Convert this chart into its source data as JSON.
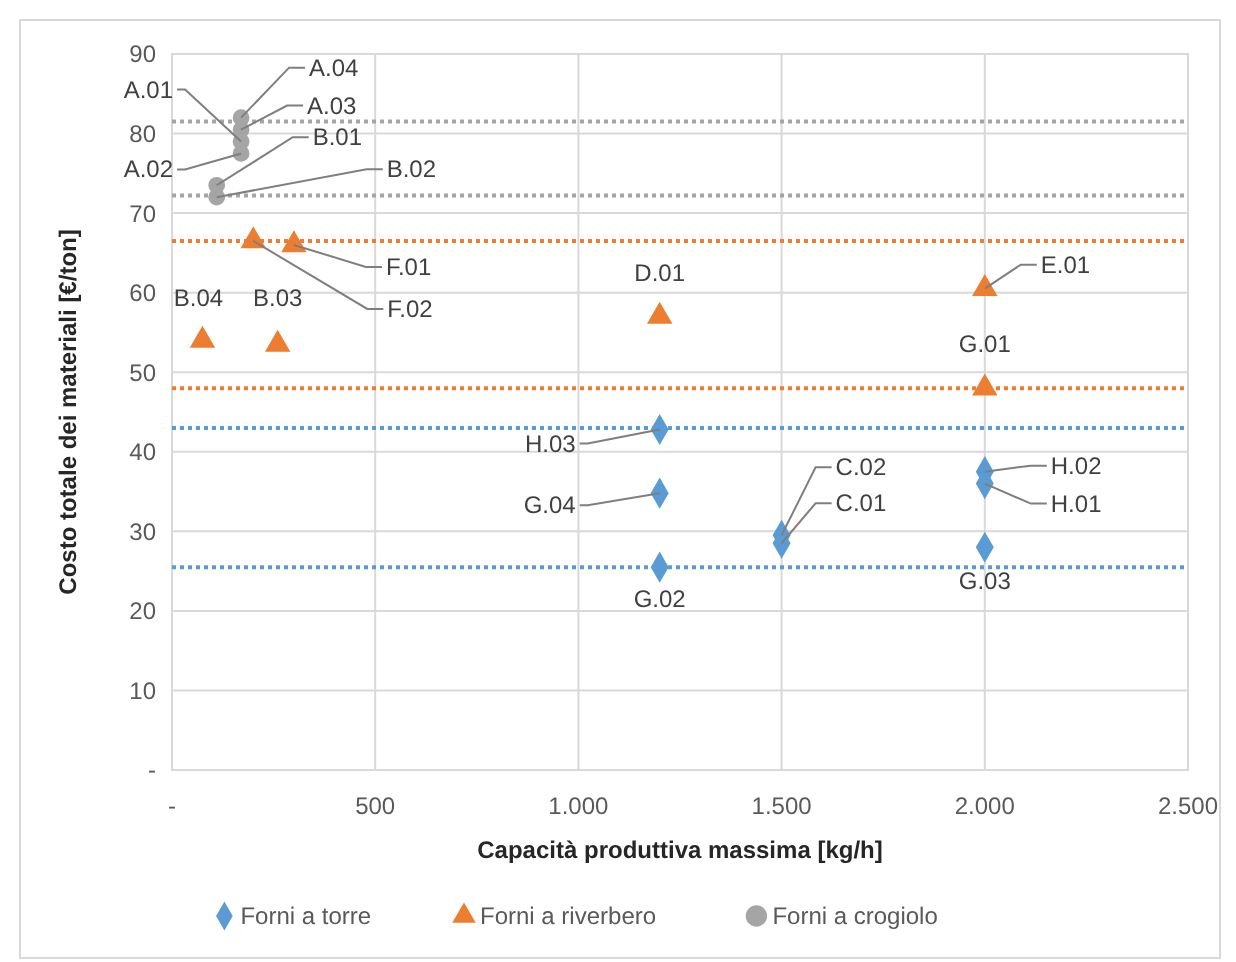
{
  "chart_data": {
    "type": "scatter",
    "xlabel": "Capacità produttiva massima [kg/h]",
    "ylabel": "Costo totale dei materiali [€/ton]",
    "xlim": [
      0,
      2500
    ],
    "xticks": [
      {
        "value": 0,
        "label": "-"
      },
      500,
      {
        "value": 1000,
        "label": "1.000"
      },
      {
        "value": 1500,
        "label": "1.500"
      },
      {
        "value": 2000,
        "label": "2.000"
      },
      {
        "value": 2500,
        "label": "2.500"
      }
    ],
    "ylim": [
      0,
      90
    ],
    "yticks": [
      {
        "value": 0,
        "label": "-"
      },
      10,
      20,
      30,
      40,
      50,
      60,
      70,
      80,
      90
    ],
    "grid": true,
    "legend": "bottom",
    "series": [
      {
        "name": "Forni a torre",
        "color": "#5b9bd5",
        "marker": "diamond",
        "x": [
          1200,
          1200,
          1200,
          1500,
          1500,
          2000,
          2000,
          2000
        ],
        "values": [
          42.8,
          34.8,
          25.5,
          29.5,
          28.5,
          37.5,
          36,
          28
        ]
      },
      {
        "name": "Forni a riverbero",
        "color": "#ed7d31",
        "marker": "triangle",
        "x": [
          300,
          200,
          75,
          260,
          1200,
          2000,
          2000
        ],
        "values": [
          66,
          66.5,
          54,
          53.5,
          57,
          60.5,
          48
        ]
      },
      {
        "name": "Forni a crogiolo",
        "color": "#a5a5a5",
        "marker": "circle",
        "x": [
          170,
          170,
          170,
          170,
          110,
          110
        ],
        "values": [
          82,
          80.5,
          79,
          77.5,
          73.5,
          72
        ]
      }
    ],
    "ref_lines": [
      {
        "axis": "y",
        "value": 81.5,
        "color": "#a5a5a5",
        "line_style": "dotted"
      },
      {
        "axis": "y",
        "value": 72.2,
        "color": "#a5a5a5",
        "line_style": "dotted"
      },
      {
        "axis": "y",
        "value": 66.5,
        "color": "#ed7d31",
        "line_style": "dotted"
      },
      {
        "axis": "y",
        "value": 48,
        "color": "#ed7d31",
        "line_style": "dotted"
      },
      {
        "axis": "y",
        "value": 43,
        "color": "#5b9bd5",
        "line_style": "dotted"
      },
      {
        "axis": "y",
        "value": 25.5,
        "color": "#5b9bd5",
        "line_style": "dotted"
      }
    ],
    "annotations": [
      {
        "text": "A.04",
        "x": 170,
        "y": 82
      },
      {
        "text": "A.03",
        "x": 170,
        "y": 80.5
      },
      {
        "text": "A.01",
        "x": 170,
        "y": 79
      },
      {
        "text": "A.02",
        "x": 170,
        "y": 77.5
      },
      {
        "text": "B.01",
        "x": 110,
        "y": 73.5
      },
      {
        "text": "B.02",
        "x": 110,
        "y": 72
      },
      {
        "text": "F.01",
        "x": 300,
        "y": 66
      },
      {
        "text": "F.02",
        "x": 200,
        "y": 66.5
      },
      {
        "text": "B.04",
        "x": 75,
        "y": 54
      },
      {
        "text": "B.03",
        "x": 260,
        "y": 53.5
      },
      {
        "text": "D.01",
        "x": 1200,
        "y": 57
      },
      {
        "text": "E.01",
        "x": 2000,
        "y": 60.5
      },
      {
        "text": "G.01",
        "x": 2000,
        "y": 48
      },
      {
        "text": "H.03",
        "x": 1200,
        "y": 42.8
      },
      {
        "text": "G.04",
        "x": 1200,
        "y": 34.8
      },
      {
        "text": "G.02",
        "x": 1200,
        "y": 25.5
      },
      {
        "text": "C.02",
        "x": 1500,
        "y": 29.5
      },
      {
        "text": "C.01",
        "x": 1500,
        "y": 28.5
      },
      {
        "text": "H.02",
        "x": 2000,
        "y": 37.5
      },
      {
        "text": "H.01",
        "x": 2000,
        "y": 36
      },
      {
        "text": "G.03",
        "x": 2000,
        "y": 28
      }
    ]
  }
}
